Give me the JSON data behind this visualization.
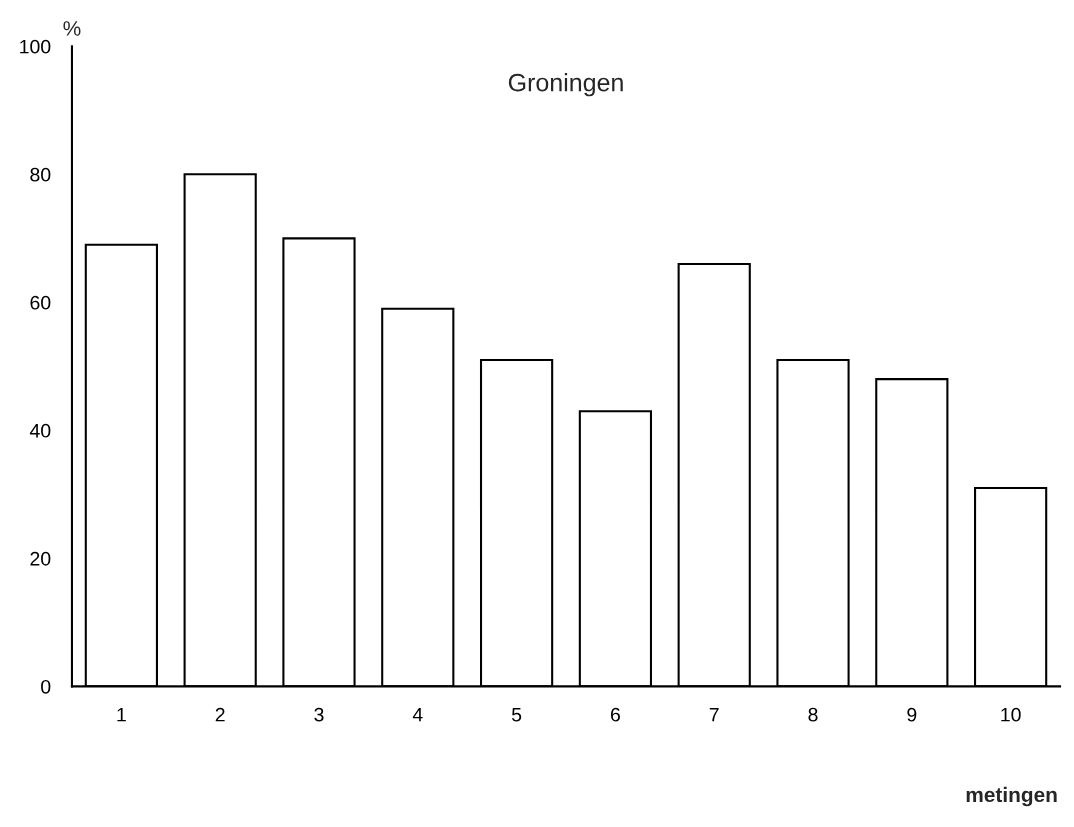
{
  "chart_data": {
    "type": "bar",
    "title": "Groningen",
    "xlabel": "metingen",
    "ylabel": "%",
    "categories": [
      "1",
      "2",
      "3",
      "4",
      "5",
      "6",
      "7",
      "8",
      "9",
      "10"
    ],
    "values": [
      69,
      80,
      70,
      59,
      51,
      43,
      66,
      51,
      48,
      31
    ],
    "color": "#ffffff",
    "ylim": [
      0,
      100
    ],
    "yticks": [
      0,
      20,
      40,
      60,
      80,
      100
    ],
    "grid": false
  }
}
